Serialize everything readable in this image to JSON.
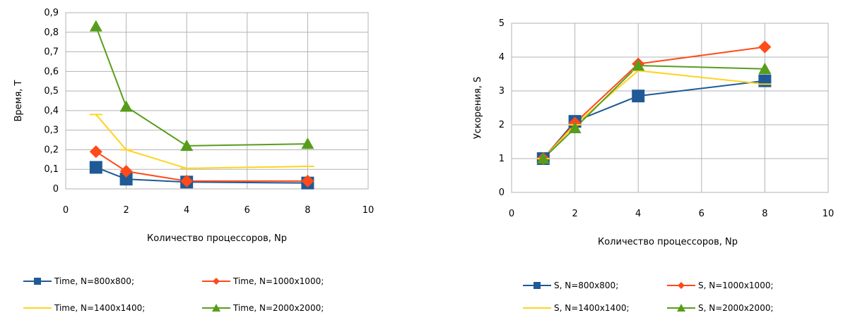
{
  "chart_data": [
    {
      "type": "line",
      "title": "",
      "xlabel": "Количество процессоров, Np",
      "ylabel": "Время, T",
      "xlim": [
        0,
        10
      ],
      "ylim": [
        0,
        0.9
      ],
      "xticks": [
        0,
        2,
        4,
        6,
        8,
        10
      ],
      "xtick_labels": [
        "0",
        "2",
        "4",
        "6",
        "8",
        "10"
      ],
      "yticks": [
        0,
        0.1,
        0.2,
        0.3,
        0.4,
        0.5,
        0.6,
        0.7,
        0.8,
        0.9
      ],
      "ytick_labels": [
        "0",
        "0,1",
        "0,2",
        "0,3",
        "0,4",
        "0,5",
        "0,6",
        "0,7",
        "0,8",
        "0,9"
      ],
      "grid": true,
      "legend_position": "bottom",
      "series": [
        {
          "name": "Time, N=800x800;",
          "color": "#1f5a96",
          "marker": "square",
          "x": [
            1,
            2,
            4,
            8
          ],
          "values": [
            0.11,
            0.05,
            0.035,
            0.03
          ]
        },
        {
          "name": "Time, N=1000x1000;",
          "color": "#ff4a1a",
          "marker": "diamond",
          "x": [
            1,
            2,
            4,
            8
          ],
          "values": [
            0.19,
            0.09,
            0.04,
            0.04
          ]
        },
        {
          "name": "Time, N=1400x1400;",
          "color": "#ffd320",
          "marker": "dash",
          "x": [
            1,
            2,
            4,
            8
          ],
          "values": [
            0.38,
            0.2,
            0.105,
            0.115
          ]
        },
        {
          "name": "Time, N=2000x2000;",
          "color": "#579d1c",
          "marker": "triangle",
          "x": [
            1,
            2,
            4,
            8
          ],
          "values": [
            0.83,
            0.42,
            0.22,
            0.23
          ]
        }
      ]
    },
    {
      "type": "line",
      "title": "",
      "xlabel": "Количество процессоров, Np",
      "ylabel": "Ускорения, S",
      "xlim": [
        0,
        10
      ],
      "ylim": [
        0,
        5
      ],
      "xticks": [
        0,
        2,
        4,
        6,
        8,
        10
      ],
      "xtick_labels": [
        "0",
        "2",
        "4",
        "6",
        "8",
        "10"
      ],
      "yticks": [
        0,
        1,
        2,
        3,
        4,
        5
      ],
      "ytick_labels": [
        "0",
        "1",
        "2",
        "3",
        "4",
        "5"
      ],
      "grid": true,
      "legend_position": "bottom",
      "series": [
        {
          "name": "S, N=800x800;",
          "color": "#1f5a96",
          "marker": "square",
          "x": [
            1,
            2,
            4,
            8
          ],
          "values": [
            1,
            2.1,
            2.85,
            3.3
          ]
        },
        {
          "name": "S, N=1000x1000;",
          "color": "#ff4a1a",
          "marker": "diamond",
          "x": [
            1,
            2,
            4,
            8
          ],
          "values": [
            1,
            2.05,
            3.8,
            4.3
          ]
        },
        {
          "name": "S, N=1400x1400;",
          "color": "#ffd320",
          "marker": "dash",
          "x": [
            1,
            2,
            4,
            8
          ],
          "values": [
            1,
            2.0,
            3.6,
            3.2
          ]
        },
        {
          "name": "S, N=2000x2000;",
          "color": "#579d1c",
          "marker": "triangle",
          "x": [
            1,
            2,
            4,
            8
          ],
          "values": [
            1,
            1.9,
            3.75,
            3.65
          ]
        }
      ]
    }
  ]
}
